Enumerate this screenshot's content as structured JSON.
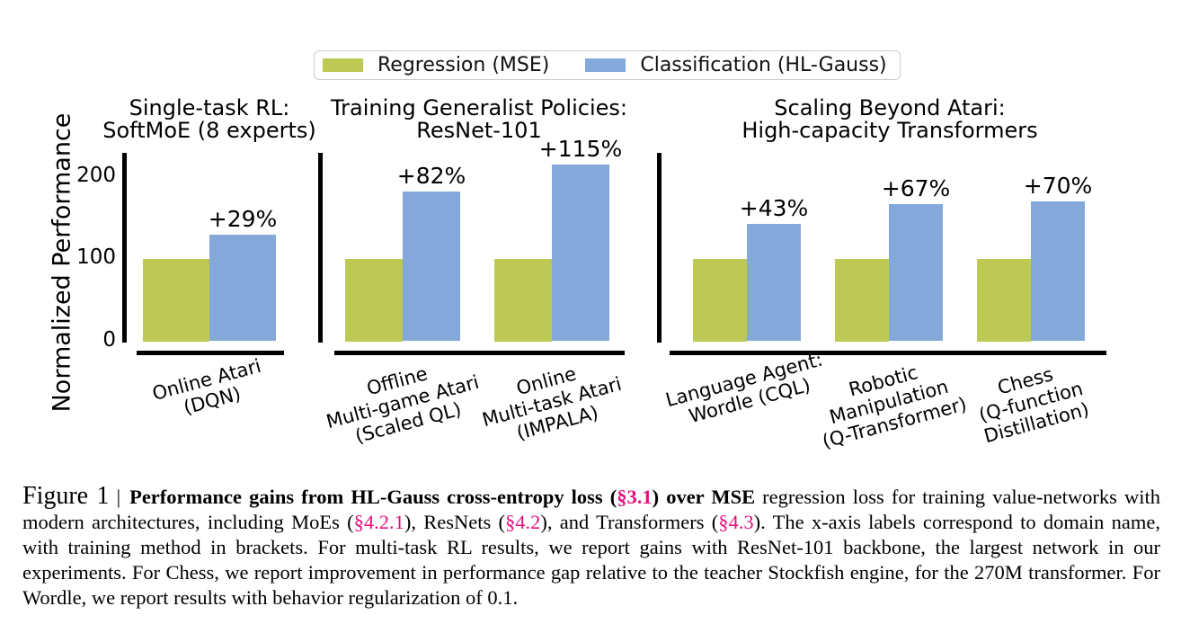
{
  "legend": {
    "items": [
      {
        "label": "Regression (MSE)",
        "color": "#bcc954"
      },
      {
        "label": "Classification (HL-Gauss)",
        "color": "#85a8db"
      }
    ],
    "border_color": "#cccccc"
  },
  "ylabel": "Normalized Performance",
  "chart_data": [
    {
      "type": "bar",
      "title": "Single-task RL:\nSoftMoE (8 experts)",
      "categories": [
        "Online Atari\n(DQN)"
      ],
      "series": [
        {
          "name": "Regression (MSE)",
          "values": [
            100
          ]
        },
        {
          "name": "Classification (HL-Gauss)",
          "values": [
            129
          ]
        }
      ],
      "annotations": [
        "+29%"
      ],
      "ylim": [
        0,
        230
      ],
      "yticks": [
        0,
        100,
        200
      ],
      "yticks_shown": true,
      "grid": false,
      "legend_position": "top-center-shared"
    },
    {
      "type": "bar",
      "title": "Training Generalist Policies:\nResNet-101",
      "categories": [
        "Offline\nMulti-game Atari\n(Scaled QL)",
        "Online\nMulti-task Atari\n(IMPALA)"
      ],
      "series": [
        {
          "name": "Regression (MSE)",
          "values": [
            100,
            100
          ]
        },
        {
          "name": "Classification (HL-Gauss)",
          "values": [
            182,
            215
          ]
        }
      ],
      "annotations": [
        "+82%",
        "+115%"
      ],
      "ylim": [
        0,
        230
      ],
      "yticks": [
        0,
        100,
        200
      ],
      "yticks_shown": false,
      "grid": false
    },
    {
      "type": "bar",
      "title": "Scaling Beyond Atari:\nHigh-capacity Transformers",
      "categories": [
        "Language Agent:\nWordle (CQL)",
        "Robotic\nManipulation\n(Q-Transformer)",
        "Chess\n(Q-function\nDistillation)"
      ],
      "series": [
        {
          "name": "Regression (MSE)",
          "values": [
            100,
            100,
            100
          ]
        },
        {
          "name": "Classification (HL-Gauss)",
          "values": [
            143,
            167,
            170
          ]
        }
      ],
      "annotations": [
        "+43%",
        "+67%",
        "+70%"
      ],
      "ylim": [
        0,
        230
      ],
      "yticks": [
        0,
        100,
        200
      ],
      "yticks_shown": false,
      "grid": false
    }
  ],
  "caption": {
    "figure_label": "Figure 1",
    "separator": "|",
    "segments": [
      {
        "text": "Performance gains from HL-Gauss cross-entropy loss (",
        "bold": true
      },
      {
        "text": "§3.1",
        "bold": true,
        "pink": true
      },
      {
        "text": ") over MSE",
        "bold": true
      },
      {
        "text": " regression loss for training value-networks with modern architectures, including MoEs ("
      },
      {
        "text": "§4.2.1",
        "pink": true
      },
      {
        "text": "), ResNets ("
      },
      {
        "text": "§4.2",
        "pink": true
      },
      {
        "text": "), and Transformers ("
      },
      {
        "text": "§4.3",
        "pink": true
      },
      {
        "text": "). The x-axis labels correspond to domain name, with training method in brackets. For multi-task RL results, we report gains with ResNet-101 backbone, the largest network in our experiments. For Chess, we report improvement in performance gap relative to the teacher Stockfish engine, for the 270M transformer. For Wordle, we report results with behavior regularization of 0.1."
      }
    ]
  }
}
